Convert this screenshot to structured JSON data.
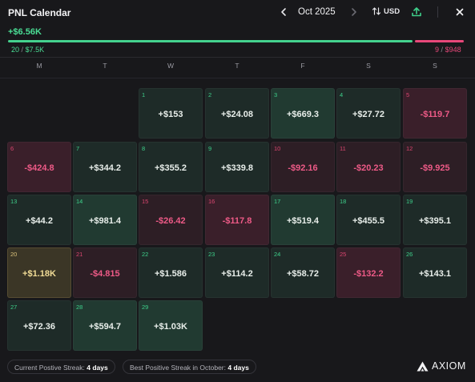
{
  "header": {
    "title": "PNL Calendar",
    "month": "Oct 2025",
    "currency": "USD"
  },
  "summary": {
    "total": "+$6.56K",
    "positive_days": "20",
    "positive_amount": "$7.5K",
    "negative_days": "9",
    "negative_amount": "$948",
    "positive_share": 0.888,
    "sep": "/"
  },
  "weekdays": [
    "M",
    "T",
    "W",
    "T",
    "F",
    "S",
    "S"
  ],
  "days": [
    {
      "day": "1",
      "value": "+$153",
      "tone": "pos1"
    },
    {
      "day": "2",
      "value": "+$24.08",
      "tone": "pos1"
    },
    {
      "day": "3",
      "value": "+$669.3",
      "tone": "pos2"
    },
    {
      "day": "4",
      "value": "+$27.72",
      "tone": "pos1"
    },
    {
      "day": "5",
      "value": "-$119.7",
      "tone": "neg2"
    },
    {
      "day": "6",
      "value": "-$424.8",
      "tone": "neg2"
    },
    {
      "day": "7",
      "value": "+$344.2",
      "tone": "pos1"
    },
    {
      "day": "8",
      "value": "+$355.2",
      "tone": "pos1"
    },
    {
      "day": "9",
      "value": "+$339.8",
      "tone": "pos1"
    },
    {
      "day": "10",
      "value": "-$92.16",
      "tone": "neg1"
    },
    {
      "day": "11",
      "value": "-$20.23",
      "tone": "neg1"
    },
    {
      "day": "12",
      "value": "-$9.925",
      "tone": "neg1"
    },
    {
      "day": "13",
      "value": "+$44.2",
      "tone": "pos1"
    },
    {
      "day": "14",
      "value": "+$981.4",
      "tone": "pos2"
    },
    {
      "day": "15",
      "value": "-$26.42",
      "tone": "neg1"
    },
    {
      "day": "16",
      "value": "-$117.8",
      "tone": "neg2"
    },
    {
      "day": "17",
      "value": "+$519.4",
      "tone": "pos2"
    },
    {
      "day": "18",
      "value": "+$455.5",
      "tone": "pos1"
    },
    {
      "day": "19",
      "value": "+$395.1",
      "tone": "pos1"
    },
    {
      "day": "20",
      "value": "+$1.18K",
      "tone": "best"
    },
    {
      "day": "21",
      "value": "-$4.815",
      "tone": "neg1"
    },
    {
      "day": "22",
      "value": "+$1.586",
      "tone": "pos1"
    },
    {
      "day": "23",
      "value": "+$114.2",
      "tone": "pos1"
    },
    {
      "day": "24",
      "value": "+$58.72",
      "tone": "pos1"
    },
    {
      "day": "25",
      "value": "-$132.2",
      "tone": "neg2"
    },
    {
      "day": "26",
      "value": "+$143.1",
      "tone": "pos1"
    },
    {
      "day": "27",
      "value": "+$72.36",
      "tone": "pos1"
    },
    {
      "day": "28",
      "value": "+$594.7",
      "tone": "pos2"
    },
    {
      "day": "29",
      "value": "+$1.03K",
      "tone": "pos2"
    }
  ],
  "first_weekday_offset": 2,
  "streaks": {
    "current_label": "Current Postive Streak:",
    "current_value": "4 days",
    "best_label": "Best Positive Streak in October:",
    "best_value": "4 days"
  },
  "brand": "AXIOM",
  "colors": {
    "positive": "#4ade95",
    "negative": "#e8487a",
    "best": "#f1dc96",
    "background": "#18181b"
  },
  "icons": {
    "prev": "chevron-left-icon",
    "next": "chevron-right-icon",
    "currency": "swap-vertical-icon",
    "share": "share-upload-icon",
    "close": "close-icon",
    "logo": "axiom-logo-icon"
  }
}
